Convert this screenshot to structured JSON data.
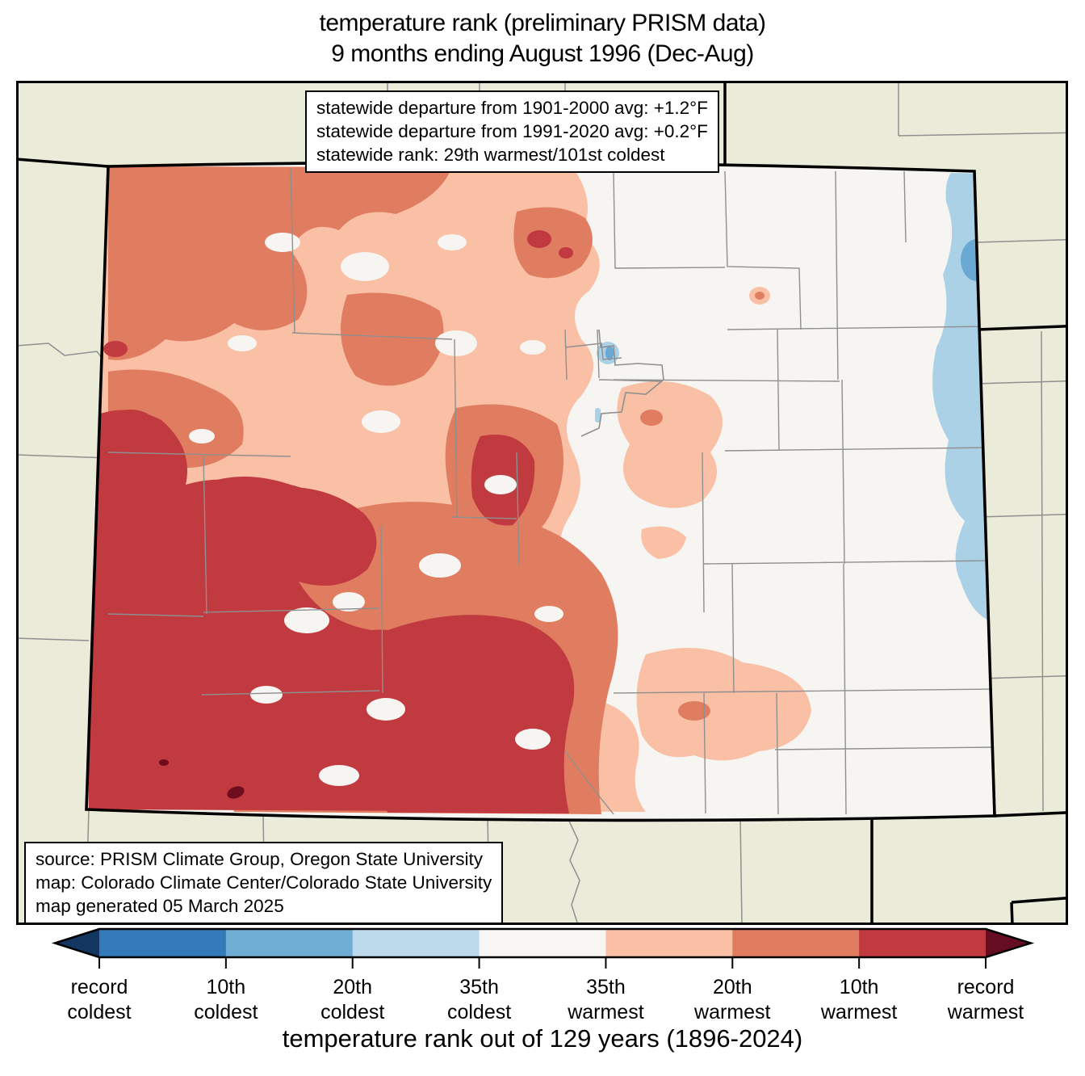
{
  "title": {
    "line1": "temperature rank (preliminary PRISM data)",
    "line2": "9 months ending August 1996 (Dec-Aug)"
  },
  "stats_box": {
    "line1": "statewide departure from 1901-2000 avg: +1.2°F",
    "line2": "statewide departure from 1991-2020 avg: +0.2°F",
    "line3": "statewide rank: 29th warmest/101st coldest"
  },
  "source_box": {
    "line1": "source: PRISM Climate Group, Oregon State University",
    "line2": "map: Colorado Climate Center/Colorado State University",
    "line3": "map generated 05 March 2025"
  },
  "caption": "temperature rank out of 129 years (1896-2024)",
  "palette": {
    "page_bg": "#ffffff",
    "outside_land": "#ebebd9",
    "neutral_base": "#f6f5f2",
    "cold35": "#bcdaeb",
    "cold20": "#abd1e6",
    "cold10": "#6aa9d3",
    "warm35": "#f9c0a6",
    "warm20": "#e07d61",
    "warm10": "#c13a40",
    "record_warm": "#6f0c1e",
    "county_line": "#8f8f8f",
    "state_line": "#000000"
  },
  "map": {
    "region": "Colorado",
    "summary": "mostly 10th-20th warmest in west and south, near-median plains, small 20th-coldest strip on central east border"
  },
  "colorbar": {
    "type": "diverging-rank-legend",
    "arrow_left_color": "#12365f",
    "arrow_right_color": "#650d22",
    "segment_colors": [
      "#337ab8",
      "#6fadd5",
      "#bcdaeb",
      "#f7f6f4",
      "#f9c0a6",
      "#e07d61",
      "#c13a40"
    ],
    "tick_labels": [
      {
        "line1": "record",
        "line2": "coldest"
      },
      {
        "line1": "10th",
        "line2": "coldest"
      },
      {
        "line1": "20th",
        "line2": "coldest"
      },
      {
        "line1": "35th",
        "line2": "coldest"
      },
      {
        "line1": "35th",
        "line2": "warmest"
      },
      {
        "line1": "20th",
        "line2": "warmest"
      },
      {
        "line1": "10th",
        "line2": "warmest"
      },
      {
        "line1": "record",
        "line2": "warmest"
      }
    ]
  }
}
